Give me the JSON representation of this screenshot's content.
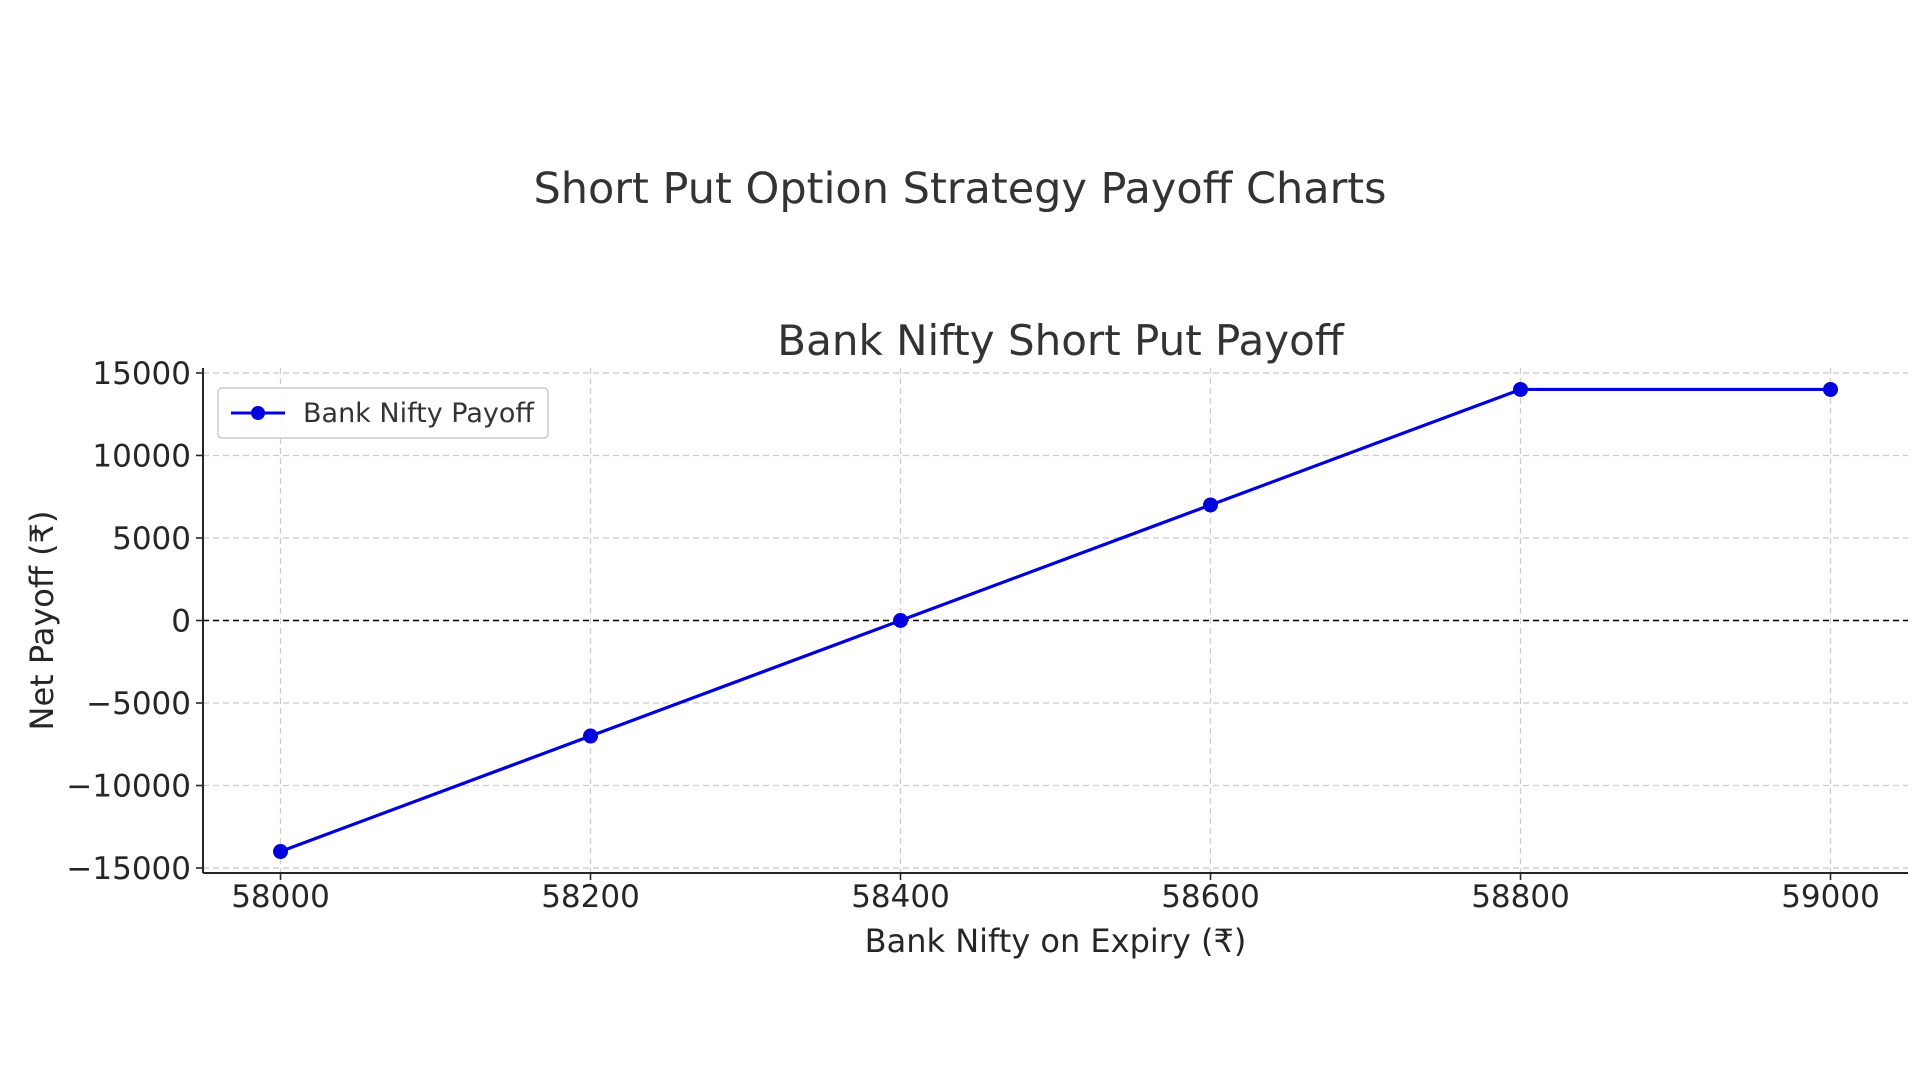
{
  "figure": {
    "title": "Short Put Option Strategy Payoff Charts"
  },
  "chart_data": {
    "type": "line",
    "title": "Bank Nifty Short Put Payoff",
    "xlabel": "Bank Nifty on Expiry (₹)",
    "ylabel": "Net Payoff (₹)",
    "x": [
      58000,
      58200,
      58400,
      58600,
      58800,
      59000
    ],
    "series": [
      {
        "name": "Bank Nifty Payoff",
        "values": [
          -14000,
          -7000,
          0,
          7000,
          14000,
          14000
        ],
        "color": "#0000dd"
      }
    ],
    "xticks": [
      58000,
      58200,
      58400,
      58600,
      58800,
      59000
    ],
    "xtick_labels": [
      "58000",
      "58200",
      "58400",
      "58600",
      "58800",
      "59000"
    ],
    "yticks": [
      -15000,
      -10000,
      -5000,
      0,
      5000,
      10000,
      15000
    ],
    "ytick_labels": [
      "−15000",
      "−10000",
      "−5000",
      "0",
      "5000",
      "10000",
      "15000"
    ],
    "xlim": [
      57950,
      59050
    ],
    "ylim": [
      -15300,
      15300
    ],
    "grid": true,
    "zero_line": true,
    "legend_position": "top-left"
  }
}
